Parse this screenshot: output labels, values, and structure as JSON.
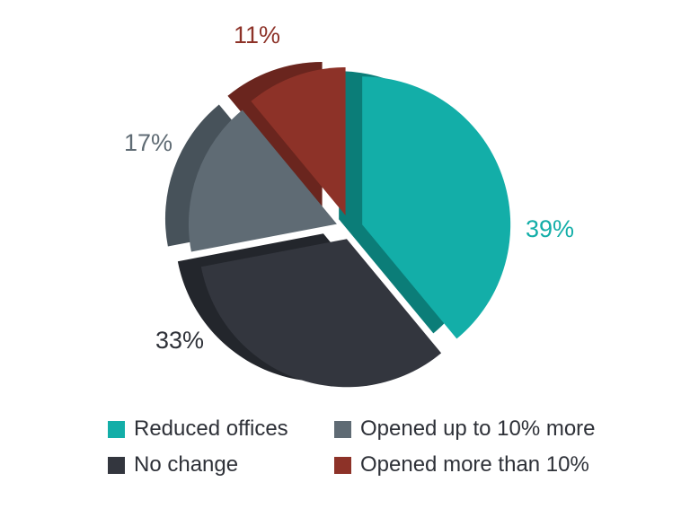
{
  "chart_data": {
    "type": "pie",
    "title": "",
    "series": [
      {
        "name": "Reduced offices",
        "value": 39,
        "label": "39%",
        "color": "#13aea8",
        "dark": "#0b7d78"
      },
      {
        "name": "No change",
        "value": 33,
        "label": "33%",
        "color": "#33363e",
        "dark": "#23262c",
        "label_color": "#2e3138"
      },
      {
        "name": "Opened up to 10% more",
        "value": 17,
        "label": "17%",
        "color": "#5f6b74",
        "dark": "#47525a"
      },
      {
        "name": "Opened more than 10%",
        "value": 11,
        "label": "11%",
        "color": "#8d3228",
        "dark": "#6a251e"
      }
    ],
    "legend_placement": "bottom"
  },
  "legend": {
    "items": [
      {
        "label": "Reduced offices",
        "color": "#13aea8"
      },
      {
        "label": "Opened up to 10% more",
        "color": "#5f6b74"
      },
      {
        "label": "No change",
        "color": "#33363e"
      },
      {
        "label": "Opened more than 10%",
        "color": "#8d3228"
      }
    ]
  }
}
